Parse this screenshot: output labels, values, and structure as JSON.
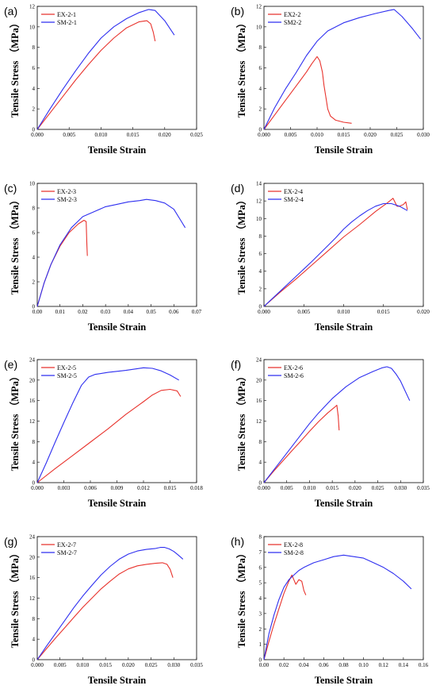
{
  "colors": {
    "ex": "#e8332d",
    "sm": "#2e2ff0"
  },
  "chart_data": [
    {
      "type": "line",
      "panel": "(a)",
      "xlabel": "Tensile Strain",
      "ylabel": "Tensile Stress （MPa）",
      "xlim": [
        0,
        0.025
      ],
      "ylim": [
        0,
        12
      ],
      "xticks": [
        "0.000",
        "0.005",
        "0.010",
        "0.015",
        "0.020",
        "0.025"
      ],
      "yticks": [
        "0",
        "2",
        "4",
        "6",
        "8",
        "10",
        "12"
      ],
      "legend": "top-left",
      "series": [
        {
          "name": "EX-2-1",
          "color_key": "ex",
          "x": [
            0,
            0.002,
            0.004,
            0.006,
            0.008,
            0.01,
            0.012,
            0.014,
            0.016,
            0.0172,
            0.0178,
            0.0182,
            0.0185
          ],
          "y": [
            0,
            1.6,
            3.2,
            4.8,
            6.3,
            7.7,
            8.9,
            9.9,
            10.5,
            10.6,
            10.3,
            9.5,
            8.6
          ]
        },
        {
          "name": "SM-2-1",
          "color_key": "sm",
          "x": [
            0,
            0.002,
            0.004,
            0.006,
            0.008,
            0.01,
            0.012,
            0.014,
            0.016,
            0.0175,
            0.0185,
            0.02,
            0.0215
          ],
          "y": [
            0,
            2.0,
            3.9,
            5.7,
            7.4,
            8.9,
            10.0,
            10.8,
            11.4,
            11.7,
            11.6,
            10.6,
            9.2
          ]
        }
      ]
    },
    {
      "type": "line",
      "panel": "(b)",
      "xlabel": "Tensile Strain",
      "ylabel": "Tensile Stress （MPa）",
      "xlim": [
        0,
        0.03
      ],
      "ylim": [
        0,
        12
      ],
      "xticks": [
        "0.000",
        "0.005",
        "0.010",
        "0.015",
        "0.020",
        "0.025",
        "0.030"
      ],
      "yticks": [
        "0",
        "2",
        "4",
        "6",
        "8",
        "10",
        "12"
      ],
      "legend": "top-left",
      "series": [
        {
          "name": "EX2-2",
          "color_key": "ex",
          "x": [
            0,
            0.002,
            0.004,
            0.006,
            0.008,
            0.009,
            0.01,
            0.0105,
            0.011,
            0.0113,
            0.0117,
            0.012,
            0.0125,
            0.0135,
            0.015,
            0.0165
          ],
          "y": [
            0,
            1.4,
            2.8,
            4.2,
            5.6,
            6.4,
            7.1,
            6.7,
            5.6,
            4.3,
            3.0,
            2.0,
            1.3,
            0.9,
            0.7,
            0.6
          ]
        },
        {
          "name": "SM2-2",
          "color_key": "sm",
          "x": [
            0,
            0.002,
            0.004,
            0.006,
            0.008,
            0.01,
            0.012,
            0.015,
            0.018,
            0.021,
            0.0235,
            0.0245,
            0.026,
            0.028,
            0.0295
          ],
          "y": [
            0,
            2.1,
            3.9,
            5.5,
            7.2,
            8.6,
            9.6,
            10.4,
            10.9,
            11.3,
            11.6,
            11.7,
            11.0,
            9.8,
            8.8
          ]
        }
      ]
    },
    {
      "type": "line",
      "panel": "(c)",
      "xlabel": "Tensile Strain",
      "ylabel": "Tensile Stress （MPa）",
      "xlim": [
        0,
        0.07
      ],
      "ylim": [
        0,
        10
      ],
      "xticks": [
        "0.00",
        "0.01",
        "0.02",
        "0.03",
        "0.04",
        "0.05",
        "0.06",
        "0.07"
      ],
      "yticks": [
        "0",
        "2",
        "4",
        "6",
        "8",
        "10"
      ],
      "legend": "top-left",
      "series": [
        {
          "name": "EX-2-3",
          "color_key": "ex",
          "x": [
            0,
            0.003,
            0.006,
            0.01,
            0.014,
            0.018,
            0.0205,
            0.0215,
            0.0218,
            0.022
          ],
          "y": [
            0,
            1.9,
            3.4,
            4.9,
            6.0,
            6.7,
            7.0,
            6.9,
            5.0,
            4.1
          ]
        },
        {
          "name": "SM-2-3",
          "color_key": "sm",
          "x": [
            0,
            0.003,
            0.006,
            0.01,
            0.015,
            0.02,
            0.025,
            0.03,
            0.035,
            0.04,
            0.045,
            0.048,
            0.052,
            0.056,
            0.06,
            0.063,
            0.065
          ],
          "y": [
            0,
            1.9,
            3.4,
            5.0,
            6.4,
            7.3,
            7.7,
            8.1,
            8.3,
            8.5,
            8.6,
            8.7,
            8.6,
            8.4,
            7.9,
            7.0,
            6.4
          ]
        }
      ]
    },
    {
      "type": "line",
      "panel": "(d)",
      "xlabel": "Tensile Strain",
      "ylabel": "Tensile Stress （MPa）",
      "xlim": [
        0,
        0.02
      ],
      "ylim": [
        0,
        14
      ],
      "xticks": [
        "0.000",
        "0.005",
        "0.010",
        "0.015",
        "0.020"
      ],
      "yticks": [
        "0",
        "2",
        "4",
        "6",
        "8",
        "10",
        "12",
        "14"
      ],
      "legend": "top-left",
      "series": [
        {
          "name": "EX-2-4",
          "color_key": "ex",
          "x": [
            0,
            0.002,
            0.004,
            0.006,
            0.008,
            0.01,
            0.012,
            0.014,
            0.0155,
            0.0162,
            0.0167,
            0.017,
            0.0175,
            0.0178,
            0.018
          ],
          "y": [
            0,
            1.6,
            3.1,
            4.7,
            6.3,
            7.9,
            9.3,
            10.8,
            11.8,
            12.3,
            11.4,
            11.4,
            11.6,
            11.9,
            11.0
          ]
        },
        {
          "name": "SM-2-4",
          "color_key": "sm",
          "x": [
            0,
            0.002,
            0.004,
            0.006,
            0.008,
            0.009,
            0.01,
            0.011,
            0.012,
            0.013,
            0.014,
            0.015,
            0.016,
            0.017,
            0.018
          ],
          "y": [
            0,
            1.7,
            3.4,
            5.1,
            6.9,
            7.8,
            8.8,
            9.6,
            10.3,
            10.9,
            11.4,
            11.7,
            11.7,
            11.4,
            10.9
          ]
        }
      ]
    },
    {
      "type": "line",
      "panel": "(e)",
      "xlabel": "Tensile Strain",
      "ylabel": "Tensile Stress （MPa）",
      "xlim": [
        0,
        0.018
      ],
      "ylim": [
        0,
        24
      ],
      "xticks": [
        "0.000",
        "0.003",
        "0.006",
        "0.009",
        "0.012",
        "0.015",
        "0.018"
      ],
      "yticks": [
        "0",
        "4",
        "8",
        "12",
        "16",
        "20",
        "24"
      ],
      "legend": "top-left",
      "series": [
        {
          "name": "EX-2-5",
          "color_key": "ex",
          "x": [
            0,
            0.002,
            0.004,
            0.006,
            0.008,
            0.01,
            0.012,
            0.013,
            0.014,
            0.015,
            0.0158,
            0.0162
          ],
          "y": [
            0,
            2.7,
            5.3,
            7.9,
            10.5,
            13.3,
            15.8,
            17.1,
            18.0,
            18.2,
            17.9,
            16.8
          ]
        },
        {
          "name": "SM-2-5",
          "color_key": "sm",
          "x": [
            0,
            0.001,
            0.002,
            0.003,
            0.004,
            0.005,
            0.0058,
            0.0065,
            0.008,
            0.01,
            0.012,
            0.013,
            0.014,
            0.015,
            0.016
          ],
          "y": [
            0,
            3.8,
            7.8,
            11.7,
            15.5,
            19.0,
            20.6,
            21.1,
            21.5,
            21.9,
            22.4,
            22.3,
            21.8,
            21.0,
            20.0
          ]
        }
      ]
    },
    {
      "type": "line",
      "panel": "(f)",
      "xlabel": "Tensile Strain",
      "ylabel": "Tensile Stress （MPa）",
      "xlim": [
        0,
        0.035
      ],
      "ylim": [
        0,
        24
      ],
      "xticks": [
        "0.000",
        "0.005",
        "0.010",
        "0.015",
        "0.020",
        "0.025",
        "0.030",
        "0.035"
      ],
      "yticks": [
        "0",
        "4",
        "8",
        "12",
        "16",
        "20",
        "24"
      ],
      "legend": "top-left",
      "series": [
        {
          "name": "EX-2-6",
          "color_key": "ex",
          "x": [
            0,
            0.002,
            0.004,
            0.006,
            0.008,
            0.01,
            0.012,
            0.014,
            0.0155,
            0.016,
            0.0163,
            0.0165
          ],
          "y": [
            0,
            2.1,
            4.1,
            6.1,
            8.0,
            10.0,
            11.9,
            13.6,
            14.7,
            15.1,
            13.0,
            10.2
          ]
        },
        {
          "name": "SM-2-6",
          "color_key": "sm",
          "x": [
            0,
            0.002,
            0.004,
            0.006,
            0.008,
            0.01,
            0.012,
            0.015,
            0.018,
            0.021,
            0.024,
            0.026,
            0.027,
            0.028,
            0.029,
            0.03,
            0.031,
            0.032
          ],
          "y": [
            0,
            2.3,
            4.6,
            6.9,
            9.2,
            11.5,
            13.6,
            16.4,
            18.7,
            20.5,
            21.7,
            22.4,
            22.6,
            22.3,
            21.2,
            19.8,
            17.9,
            16.0
          ]
        }
      ]
    },
    {
      "type": "line",
      "panel": "(g)",
      "xlabel": "Tensile Strain",
      "ylabel": "Tensile Stress （MPa）",
      "xlim": [
        0,
        0.035
      ],
      "ylim": [
        0,
        24
      ],
      "xticks": [
        "0.000",
        "0.005",
        "0.010",
        "0.015",
        "0.020",
        "0.025",
        "0.030",
        "0.035"
      ],
      "yticks": [
        "0",
        "4",
        "8",
        "12",
        "16",
        "20",
        "24"
      ],
      "legend": "top-left",
      "series": [
        {
          "name": "EX-2-7",
          "color_key": "ex",
          "x": [
            0,
            0.002,
            0.004,
            0.006,
            0.008,
            0.01,
            0.012,
            0.014,
            0.016,
            0.018,
            0.02,
            0.022,
            0.024,
            0.026,
            0.0275,
            0.0285,
            0.0292,
            0.0298
          ],
          "y": [
            0,
            2.1,
            4.2,
            6.2,
            8.2,
            10.2,
            12.0,
            13.8,
            15.3,
            16.7,
            17.7,
            18.3,
            18.6,
            18.8,
            18.9,
            18.6,
            17.6,
            16.0
          ]
        },
        {
          "name": "SM-2-7",
          "color_key": "sm",
          "x": [
            0,
            0.002,
            0.004,
            0.006,
            0.008,
            0.01,
            0.012,
            0.014,
            0.016,
            0.018,
            0.02,
            0.022,
            0.024,
            0.026,
            0.027,
            0.028,
            0.029,
            0.03,
            0.031,
            0.032
          ],
          "y": [
            0,
            2.6,
            5.1,
            7.6,
            10.1,
            12.4,
            14.5,
            16.5,
            18.2,
            19.6,
            20.6,
            21.2,
            21.5,
            21.7,
            21.9,
            21.9,
            21.6,
            21.1,
            20.4,
            19.6
          ]
        }
      ]
    },
    {
      "type": "line",
      "panel": "(h)",
      "xlabel": "Tensile Strain",
      "ylabel": "Tensile Stress （MPa）",
      "xlim": [
        0,
        0.16
      ],
      "ylim": [
        0,
        8
      ],
      "xticks": [
        "0.00",
        "0.02",
        "0.04",
        "0.06",
        "0.08",
        "0.10",
        "0.12",
        "0.14",
        "0.16"
      ],
      "yticks": [
        "0",
        "1",
        "2",
        "3",
        "4",
        "5",
        "6",
        "7",
        "8"
      ],
      "legend": "top-left",
      "series": [
        {
          "name": "EX-2-8",
          "color_key": "ex",
          "x": [
            0,
            0.005,
            0.01,
            0.015,
            0.02,
            0.025,
            0.028,
            0.03,
            0.032,
            0.035,
            0.038,
            0.04,
            0.042
          ],
          "y": [
            0,
            1.2,
            2.3,
            3.3,
            4.3,
            5.1,
            5.5,
            5.2,
            4.9,
            5.2,
            5.1,
            4.5,
            4.2
          ]
        },
        {
          "name": "SM-2-8",
          "color_key": "sm",
          "x": [
            0,
            0.005,
            0.01,
            0.015,
            0.02,
            0.025,
            0.03,
            0.035,
            0.04,
            0.05,
            0.06,
            0.07,
            0.08,
            0.09,
            0.1,
            0.11,
            0.12,
            0.13,
            0.14,
            0.148
          ],
          "y": [
            0,
            1.7,
            2.9,
            3.9,
            4.7,
            5.2,
            5.5,
            5.8,
            6.0,
            6.3,
            6.5,
            6.7,
            6.8,
            6.7,
            6.6,
            6.3,
            6.0,
            5.6,
            5.1,
            4.6
          ]
        }
      ]
    }
  ]
}
